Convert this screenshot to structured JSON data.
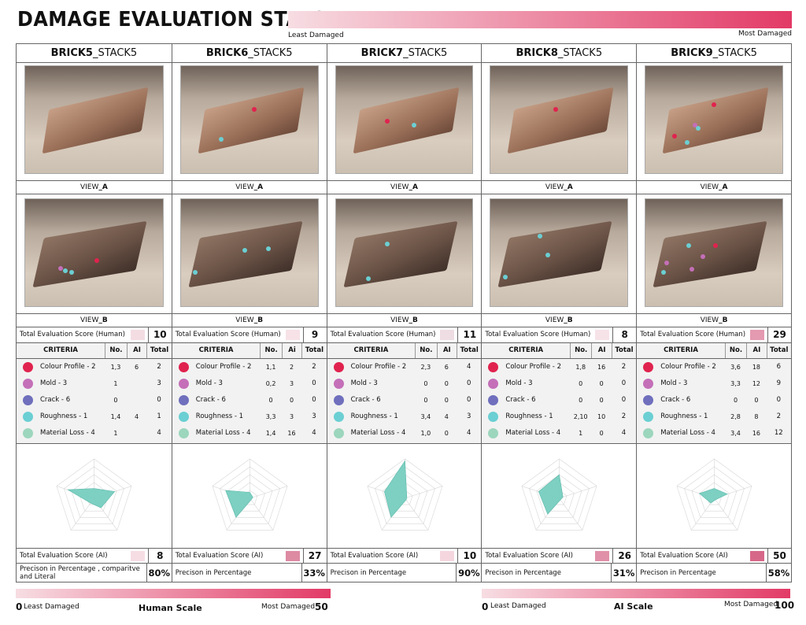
{
  "title": "DAMAGE EVALUATION STATS",
  "scale": {
    "least_label": "Least Damaged",
    "most_label": "Most Damaged",
    "colors": [
      "#f7dde3",
      "#e23a66"
    ]
  },
  "criteria_header": {
    "criteria": "CRITERIA",
    "no": "No.",
    "total": "Total"
  },
  "criteria_colors": [
    "#e0234e",
    "#c46fb8",
    "#6f6fbd",
    "#6bcfd3",
    "#9cd6bd"
  ],
  "score_labels": {
    "human": "Total Evaluation Score (Human)",
    "ai": "Total Evaluation Score (AI)"
  },
  "bricks": [
    {
      "name_bold": "BRICK5",
      "name_rest": "_STACK5",
      "view_a_prefix": "VIEW",
      "view_a_suffix": "_A",
      "view_b_prefix": "VIEW",
      "view_b_suffix": "_B",
      "human_score": "10",
      "human_swatch": "#f3dde3",
      "ai_col_label": "AI",
      "criteria": [
        {
          "label": "Colour Profile - 2",
          "no": "1,3",
          "ai": "6",
          "total": "2"
        },
        {
          "label": "Mold - 3",
          "no": "1",
          "ai": "",
          "total": "3"
        },
        {
          "label": "Crack - 6",
          "no": "0",
          "ai": "",
          "total": "0"
        },
        {
          "label": "Roughness - 1",
          "no": "1,4",
          "ai": "4",
          "total": "1"
        },
        {
          "label": "Material Loss - 4",
          "no": "1",
          "ai": "",
          "total": "4"
        }
      ],
      "radar": [
        0.25,
        0.55,
        0.3,
        0.15,
        0.7
      ],
      "ai_score": "8",
      "ai_swatch": "#f6dde4",
      "precision_label": "Precison in Percentage , comparitve and Literal",
      "precision": "80%"
    },
    {
      "name_bold": "BRICK6",
      "name_rest": "_STACK5",
      "view_a_prefix": "VIEW",
      "view_a_suffix": "_A",
      "view_b_prefix": "VIEW",
      "view_b_suffix": "_B",
      "human_score": "9",
      "human_swatch": "#f6e2e7",
      "ai_col_label": "Ai",
      "criteria": [
        {
          "label": "Colour Profile - 2",
          "no": "1,1",
          "ai": "2",
          "total": "2"
        },
        {
          "label": "Mold - 3",
          "no": "0,2",
          "ai": "3",
          "total": "0"
        },
        {
          "label": "Crack - 6",
          "no": "0",
          "ai": "0",
          "total": "0"
        },
        {
          "label": "Roughness - 1",
          "no": "3,3",
          "ai": "3",
          "total": "3"
        },
        {
          "label": "Material Loss - 4",
          "no": "1,4",
          "ai": "16",
          "total": "4"
        }
      ],
      "radar": [
        0.15,
        0.08,
        0.05,
        0.6,
        0.65
      ],
      "ai_score": "27",
      "ai_swatch": "#dd8aa3",
      "precision_label": "Precison in Percentage",
      "precision": "33%"
    },
    {
      "name_bold": "BRICK7",
      "name_rest": "_STACK5",
      "view_a_prefix": "VIEW",
      "view_a_suffix": "_A",
      "view_b_prefix": "VIEW",
      "view_b_suffix": "_B",
      "human_score": "11",
      "human_swatch": "#eedde2",
      "ai_col_label": "AI",
      "criteria": [
        {
          "label": "Colour Profile - 2",
          "no": "2,3",
          "ai": "6",
          "total": "4"
        },
        {
          "label": "Mold - 3",
          "no": "0",
          "ai": "0",
          "total": "0"
        },
        {
          "label": "Crack - 6",
          "no": "0",
          "ai": "0",
          "total": "0"
        },
        {
          "label": "Roughness - 1",
          "no": "3,4",
          "ai": "4",
          "total": "3"
        },
        {
          "label": "Material Loss - 4",
          "no": "1,0",
          "ai": "0",
          "total": "4"
        }
      ],
      "radar": [
        0.95,
        0.05,
        0.05,
        0.6,
        0.55
      ],
      "ai_score": "10",
      "ai_swatch": "#f5d6df",
      "precision_label": "Precison in Percentage",
      "precision": "90%"
    },
    {
      "name_bold": "BRICK8",
      "name_rest": "_STACK5",
      "view_a_prefix": "VIEW",
      "view_a_suffix": "_A",
      "view_b_prefix": "VIEW",
      "view_b_suffix": "_B",
      "human_score": "8",
      "human_swatch": "#f6e3e8",
      "ai_col_label": "AI",
      "criteria": [
        {
          "label": "Colour Profile - 2",
          "no": "1,8",
          "ai": "16",
          "total": "2"
        },
        {
          "label": "Mold - 3",
          "no": "0",
          "ai": "0",
          "total": "0"
        },
        {
          "label": "Crack - 6",
          "no": "0",
          "ai": "0",
          "total": "0"
        },
        {
          "label": "Roughness - 1",
          "no": "2,10",
          "ai": "10",
          "total": "2"
        },
        {
          "label": "Material Loss - 4",
          "no": "1",
          "ai": "0",
          "total": "4"
        }
      ],
      "radar": [
        0.6,
        0.1,
        0.05,
        0.5,
        0.55
      ],
      "ai_score": "26",
      "ai_swatch": "#e090a8",
      "precision_label": "Precison in Percentage",
      "precision": "31%"
    },
    {
      "name_bold": "BRICK9",
      "name_rest": "_STACK5",
      "view_a_prefix": "VIEW",
      "view_a_suffix": "_A",
      "view_b_prefix": "VIEW",
      "view_b_suffix": "_B",
      "human_score": "29",
      "human_swatch": "#e49ab0",
      "ai_col_label": "AI",
      "criteria": [
        {
          "label": "Colour Profile - 2",
          "no": "3,6",
          "ai": "18",
          "total": "6"
        },
        {
          "label": "Mold - 3",
          "no": "3,3",
          "ai": "12",
          "total": "9"
        },
        {
          "label": "Crack - 6",
          "no": "0",
          "ai": "0",
          "total": "0"
        },
        {
          "label": "Roughness - 1",
          "no": "2,8",
          "ai": "8",
          "total": "2"
        },
        {
          "label": "Material Loss - 4",
          "no": "3,4",
          "ai": "16",
          "total": "12"
        }
      ],
      "radar": [
        0.25,
        0.35,
        0.05,
        0.15,
        0.4
      ],
      "ai_score": "50",
      "ai_swatch": "#d76789",
      "precision_label": "Precison in Percentage",
      "precision": "58%"
    }
  ],
  "bottom": {
    "human": {
      "min": "0",
      "max": "50",
      "least": "Least Damaged",
      "most": "Most Damaged",
      "name": "Human Scale"
    },
    "ai": {
      "min": "0",
      "max": "100",
      "least": "Least Damaged",
      "most": "Most Damaged",
      "name": "AI Scale"
    }
  }
}
